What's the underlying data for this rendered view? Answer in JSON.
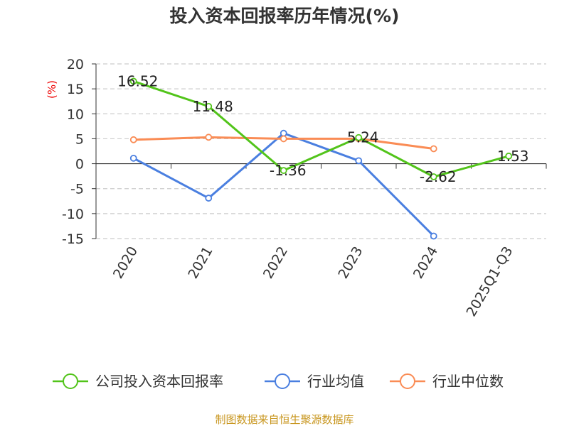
{
  "chart_data": {
    "type": "line",
    "title": "投入资本回报率历年情况(%)",
    "ylabel": "(%)",
    "xlabel": "",
    "ylim": [
      -15,
      20
    ],
    "yticks": [
      20,
      15,
      10,
      5,
      0,
      -5,
      -10,
      -15
    ],
    "grid": true,
    "legend_position": "bottom",
    "categories": [
      "2020",
      "2021",
      "2022",
      "2023",
      "2024",
      "2025Q1-Q3"
    ],
    "series": [
      {
        "name": "公司投入资本回报率",
        "color": "#52c41a",
        "values": [
          16.52,
          11.48,
          -1.36,
          5.24,
          -2.62,
          1.53
        ],
        "labels": [
          "16.52",
          "11.48",
          "-1.36",
          "5.24",
          "-2.62",
          "1.53"
        ]
      },
      {
        "name": "行业均值",
        "color": "#4a7fe0",
        "values": [
          1.1,
          -6.9,
          6.1,
          0.6,
          -14.5,
          null
        ]
      },
      {
        "name": "行业中位数",
        "color": "#fa8c55",
        "values": [
          4.8,
          5.3,
          5.0,
          5.0,
          3.0,
          null
        ]
      }
    ]
  },
  "footer": "制图数据来自恒生聚源数据库"
}
